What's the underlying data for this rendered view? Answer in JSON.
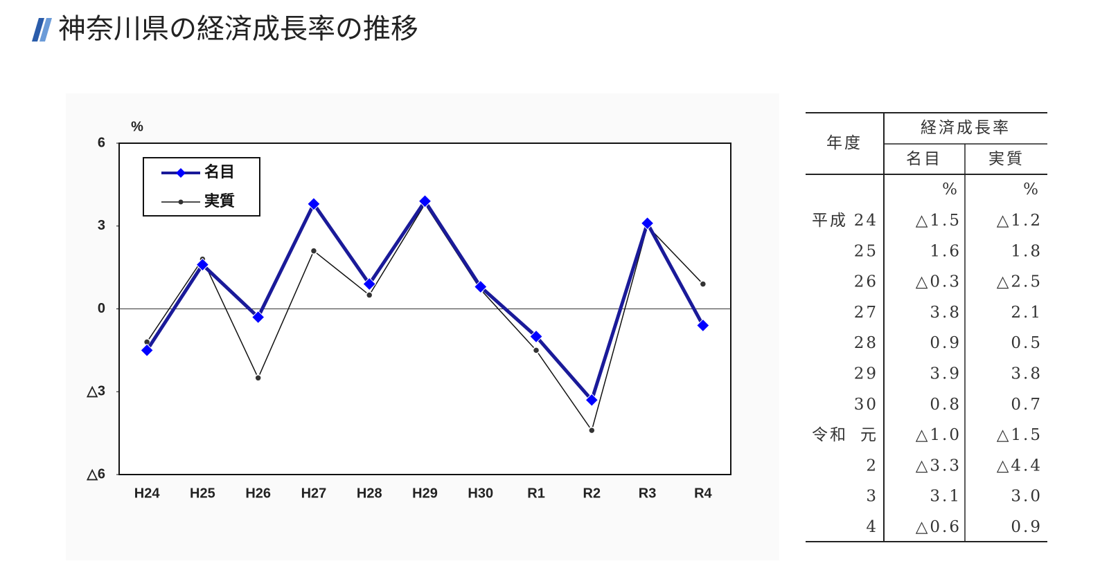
{
  "page_title": "神奈川県の経済成長率の推移",
  "chart_data": {
    "type": "line",
    "y_unit": "%",
    "categories": [
      "H24",
      "H25",
      "H26",
      "H27",
      "H28",
      "H29",
      "H30",
      "R1",
      "R2",
      "R3",
      "R4"
    ],
    "series": [
      {
        "name": "名目",
        "color": "#1a1a99",
        "marker_color": "#0000ff",
        "marker": "diamond",
        "values": [
          -1.5,
          1.6,
          -0.3,
          3.8,
          0.9,
          3.9,
          0.8,
          -1.0,
          -3.3,
          3.1,
          -0.6
        ]
      },
      {
        "name": "実質",
        "color": "#111111",
        "marker_color": "#333333",
        "marker": "circle",
        "values": [
          -1.2,
          1.8,
          -2.5,
          2.1,
          0.5,
          3.8,
          0.7,
          -1.5,
          -4.4,
          3.0,
          0.9
        ]
      }
    ],
    "ylim": [
      -6,
      6
    ],
    "yticks": [
      6,
      3,
      0,
      {
        "value": -3,
        "label": "△3"
      },
      {
        "value": -6,
        "label": "△6"
      }
    ],
    "zero_line": true,
    "legend": "upper left"
  },
  "table": {
    "header": {
      "year": "年度",
      "growth": "経済成長率",
      "nominal": "名目",
      "real": "実質"
    },
    "units": {
      "nominal": "%",
      "real": "%"
    },
    "rows": [
      {
        "era": "平成",
        "year": "24",
        "nominal": "△1.5",
        "real": "△1.2"
      },
      {
        "year": "25",
        "nominal": "1.6",
        "real": "1.8"
      },
      {
        "year": "26",
        "nominal": "△0.3",
        "real": "△2.5"
      },
      {
        "year": "27",
        "nominal": "3.8",
        "real": "2.1"
      },
      {
        "year": "28",
        "nominal": "0.9",
        "real": "0.5"
      },
      {
        "year": "29",
        "nominal": "3.9",
        "real": "3.8"
      },
      {
        "year": "30",
        "nominal": "0.8",
        "real": "0.7"
      },
      {
        "era": "令和",
        "year": "元",
        "nominal": "△1.0",
        "real": "△1.5"
      },
      {
        "year": "2",
        "nominal": "△3.3",
        "real": "△4.4"
      },
      {
        "year": "3",
        "nominal": "3.1",
        "real": "3.0"
      },
      {
        "year": "4",
        "nominal": "△0.6",
        "real": "0.9"
      }
    ]
  }
}
